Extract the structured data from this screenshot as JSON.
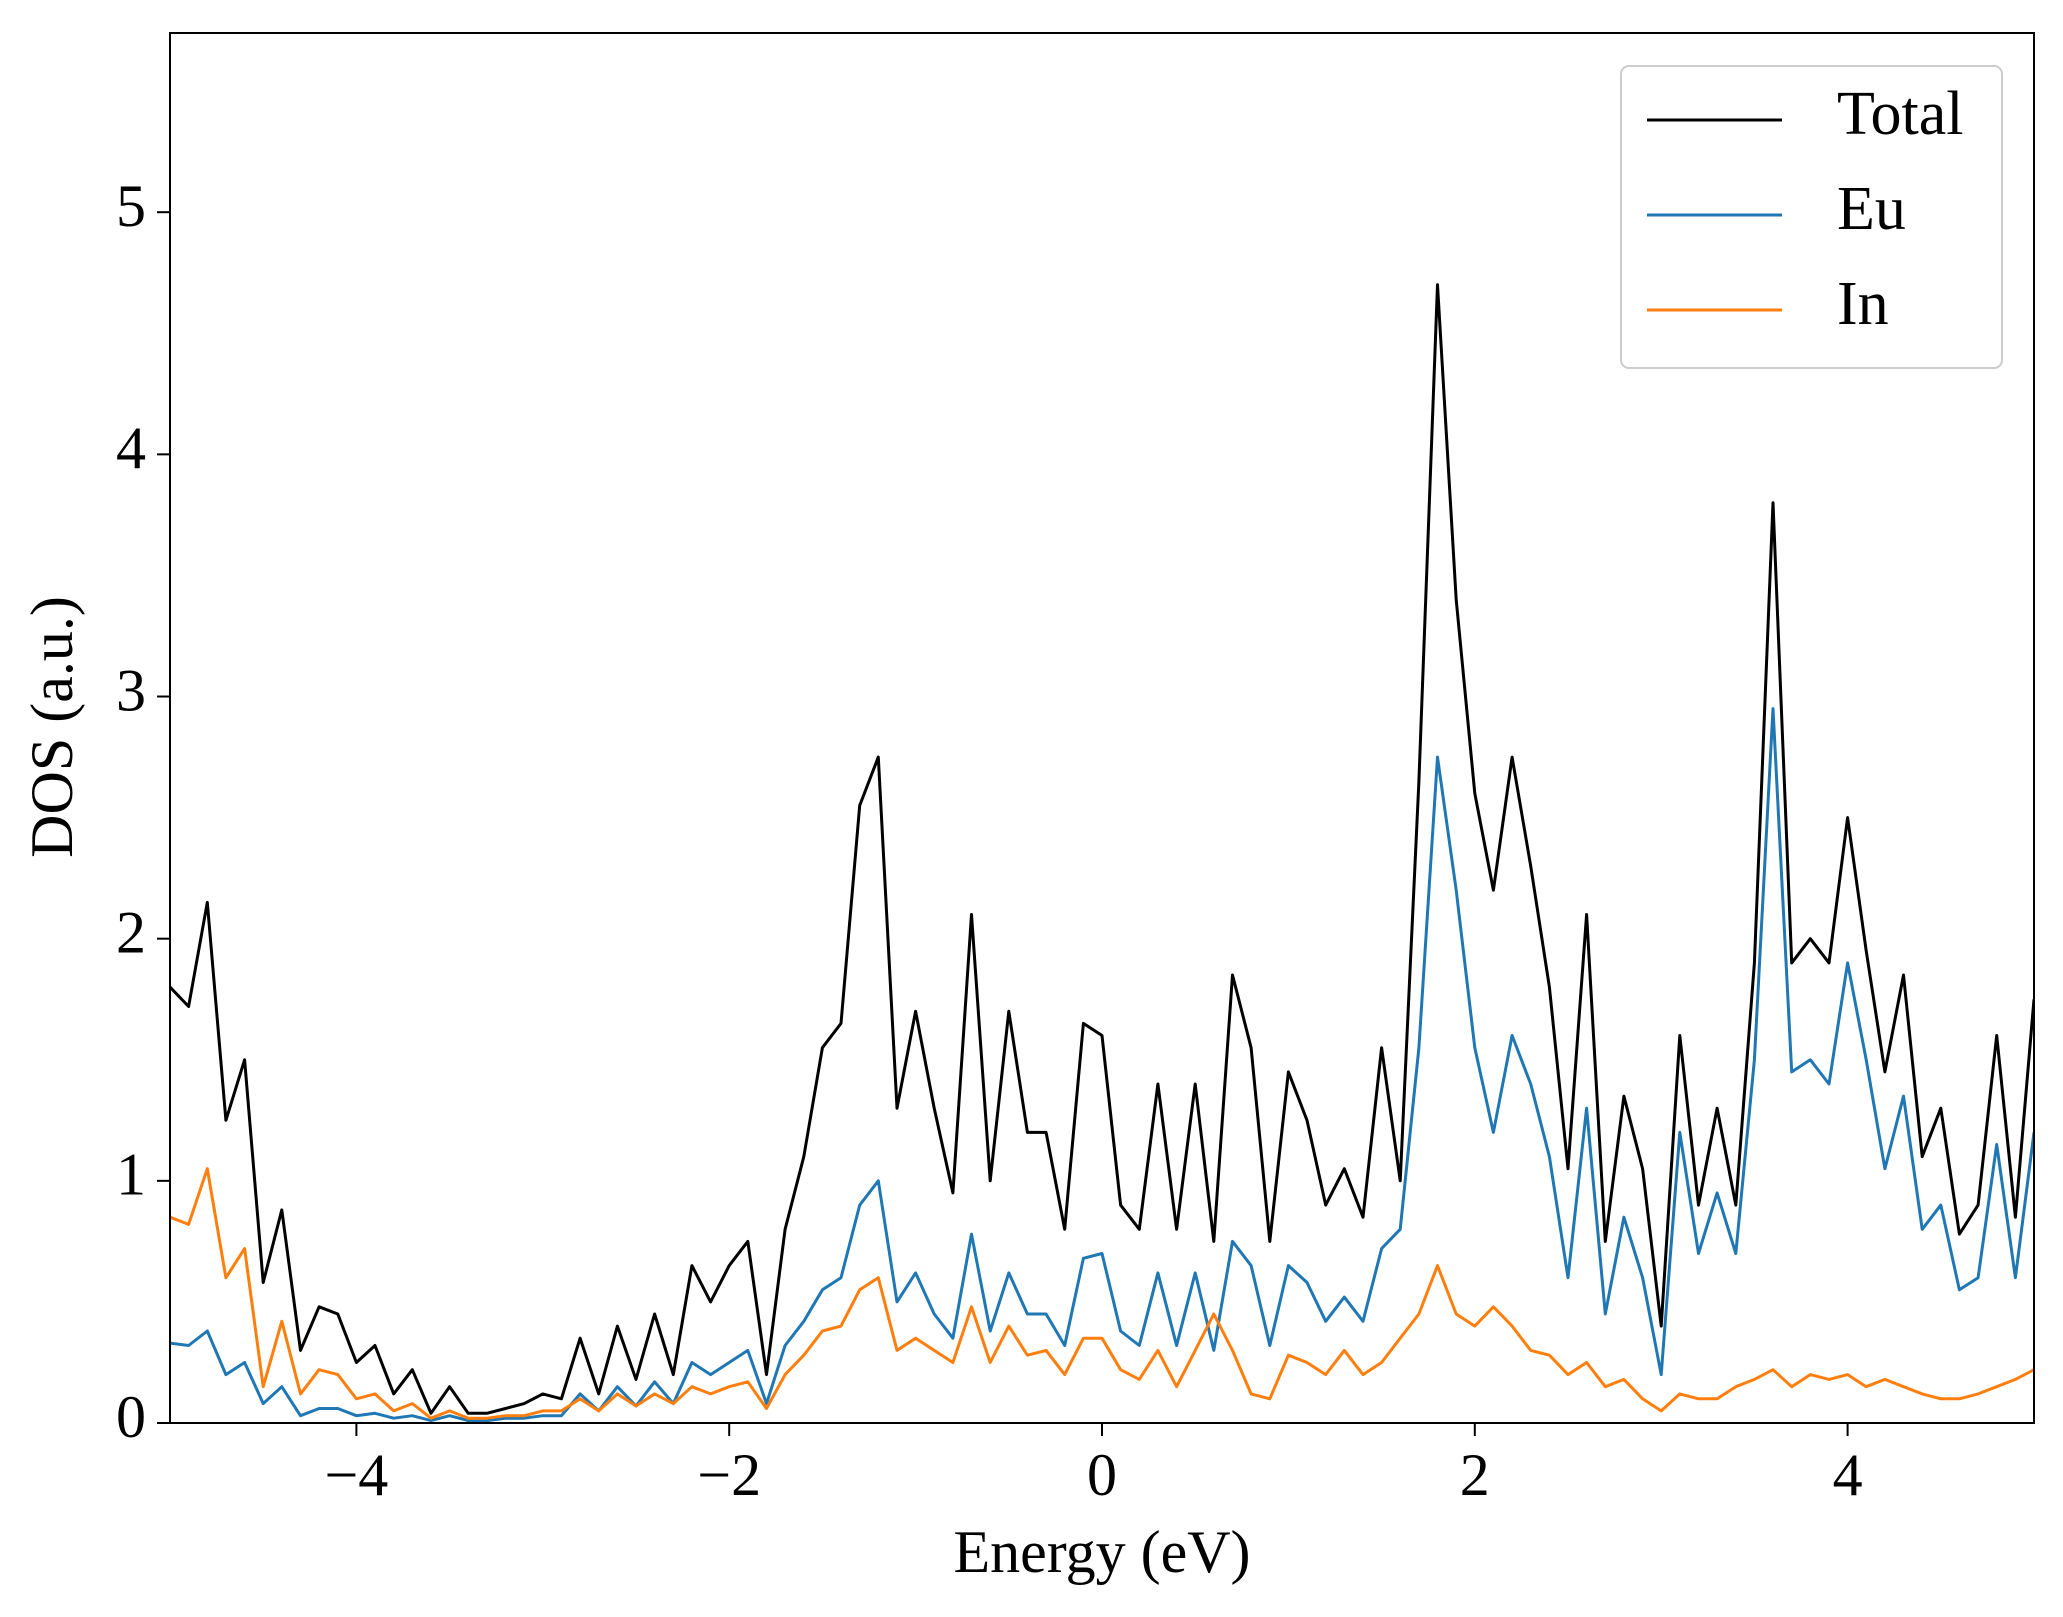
{
  "chart_data": {
    "type": "line",
    "xlabel": "Energy (eV)",
    "ylabel": "DOS (a.u.)",
    "xlim": [
      -5,
      5
    ],
    "ylim": [
      0,
      5.74
    ],
    "xticks": [
      {
        "value": -4,
        "label": "−4"
      },
      {
        "value": -2,
        "label": "−2"
      },
      0,
      2,
      4
    ],
    "yticks": [
      0,
      1,
      2,
      3,
      4,
      5
    ],
    "legend": "upper right",
    "x": [
      -5.0,
      -4.9,
      -4.8,
      -4.7,
      -4.6,
      -4.5,
      -4.4,
      -4.3,
      -4.2,
      -4.1,
      -4.0,
      -3.9,
      -3.8,
      -3.7,
      -3.6,
      -3.5,
      -3.4,
      -3.3,
      -3.2,
      -3.1,
      -3.0,
      -2.9,
      -2.8,
      -2.7,
      -2.6,
      -2.5,
      -2.4,
      -2.3,
      -2.2,
      -2.1,
      -2.0,
      -1.9,
      -1.8,
      -1.7,
      -1.6,
      -1.5,
      -1.4,
      -1.3,
      -1.2,
      -1.1,
      -1.0,
      -0.9,
      -0.8,
      -0.7,
      -0.6,
      -0.5,
      -0.4,
      -0.3,
      -0.2,
      -0.1,
      0.0,
      0.1,
      0.2,
      0.3,
      0.4,
      0.5,
      0.6,
      0.7,
      0.8,
      0.9,
      1.0,
      1.1,
      1.2,
      1.3,
      1.4,
      1.5,
      1.6,
      1.7,
      1.8,
      1.9,
      2.0,
      2.1,
      2.2,
      2.3,
      2.4,
      2.5,
      2.6,
      2.7,
      2.8,
      2.9,
      3.0,
      3.1,
      3.2,
      3.3,
      3.4,
      3.5,
      3.6,
      3.7,
      3.8,
      3.9,
      4.0,
      4.1,
      4.2,
      4.3,
      4.4,
      4.5,
      4.6,
      4.7,
      4.8,
      4.9,
      5.0
    ],
    "series": [
      {
        "name": "Total",
        "color": "#000000",
        "values": [
          1.8,
          1.72,
          2.15,
          1.25,
          1.5,
          0.58,
          0.88,
          0.3,
          0.48,
          0.45,
          0.25,
          0.32,
          0.12,
          0.22,
          0.04,
          0.15,
          0.04,
          0.04,
          0.06,
          0.08,
          0.12,
          0.1,
          0.35,
          0.12,
          0.4,
          0.18,
          0.45,
          0.2,
          0.65,
          0.5,
          0.65,
          0.75,
          0.2,
          0.8,
          1.1,
          1.55,
          1.65,
          2.55,
          2.75,
          1.3,
          1.7,
          1.3,
          0.95,
          2.1,
          1.0,
          1.7,
          1.2,
          1.2,
          0.8,
          1.65,
          1.6,
          0.9,
          0.8,
          1.4,
          0.8,
          1.4,
          0.75,
          1.85,
          1.55,
          0.75,
          1.45,
          1.25,
          0.9,
          1.05,
          0.85,
          1.55,
          1.0,
          2.65,
          4.7,
          3.4,
          2.6,
          2.2,
          2.75,
          2.3,
          1.8,
          1.05,
          2.1,
          0.75,
          1.35,
          1.05,
          0.4,
          1.6,
          0.9,
          1.3,
          0.9,
          1.9,
          3.8,
          1.9,
          2.0,
          1.9,
          2.5,
          1.95,
          1.45,
          1.85,
          1.1,
          1.3,
          0.78,
          0.9,
          1.6,
          0.85,
          1.75
        ]
      },
      {
        "name": "Eu",
        "color": "#1f77b4",
        "values": [
          0.33,
          0.32,
          0.38,
          0.2,
          0.25,
          0.08,
          0.15,
          0.03,
          0.06,
          0.06,
          0.03,
          0.04,
          0.02,
          0.03,
          0.01,
          0.03,
          0.01,
          0.01,
          0.02,
          0.02,
          0.03,
          0.03,
          0.12,
          0.05,
          0.15,
          0.07,
          0.17,
          0.08,
          0.25,
          0.2,
          0.25,
          0.3,
          0.08,
          0.32,
          0.42,
          0.55,
          0.6,
          0.9,
          1.0,
          0.5,
          0.62,
          0.45,
          0.35,
          0.78,
          0.38,
          0.62,
          0.45,
          0.45,
          0.32,
          0.68,
          0.7,
          0.38,
          0.32,
          0.62,
          0.32,
          0.62,
          0.3,
          0.75,
          0.65,
          0.32,
          0.65,
          0.58,
          0.42,
          0.52,
          0.42,
          0.72,
          0.8,
          1.55,
          2.75,
          2.2,
          1.55,
          1.2,
          1.6,
          1.4,
          1.1,
          0.6,
          1.3,
          0.45,
          0.85,
          0.6,
          0.2,
          1.2,
          0.7,
          0.95,
          0.7,
          1.5,
          2.95,
          1.45,
          1.5,
          1.4,
          1.9,
          1.5,
          1.05,
          1.35,
          0.8,
          0.9,
          0.55,
          0.6,
          1.15,
          0.6,
          1.2
        ]
      },
      {
        "name": "In",
        "color": "#ff7f0e",
        "values": [
          0.85,
          0.82,
          1.05,
          0.6,
          0.72,
          0.15,
          0.42,
          0.12,
          0.22,
          0.2,
          0.1,
          0.12,
          0.05,
          0.08,
          0.02,
          0.05,
          0.02,
          0.02,
          0.03,
          0.03,
          0.05,
          0.05,
          0.1,
          0.05,
          0.12,
          0.07,
          0.12,
          0.08,
          0.15,
          0.12,
          0.15,
          0.17,
          0.06,
          0.2,
          0.28,
          0.38,
          0.4,
          0.55,
          0.6,
          0.3,
          0.35,
          0.3,
          0.25,
          0.48,
          0.25,
          0.4,
          0.28,
          0.3,
          0.2,
          0.35,
          0.35,
          0.22,
          0.18,
          0.3,
          0.15,
          0.3,
          0.45,
          0.3,
          0.12,
          0.1,
          0.28,
          0.25,
          0.2,
          0.3,
          0.2,
          0.25,
          0.35,
          0.45,
          0.65,
          0.45,
          0.4,
          0.48,
          0.4,
          0.3,
          0.28,
          0.2,
          0.25,
          0.15,
          0.18,
          0.1,
          0.05,
          0.12,
          0.1,
          0.1,
          0.15,
          0.18,
          0.22,
          0.15,
          0.2,
          0.18,
          0.2,
          0.15,
          0.18,
          0.15,
          0.12,
          0.1,
          0.1,
          0.12,
          0.15,
          0.18,
          0.22
        ]
      }
    ]
  }
}
